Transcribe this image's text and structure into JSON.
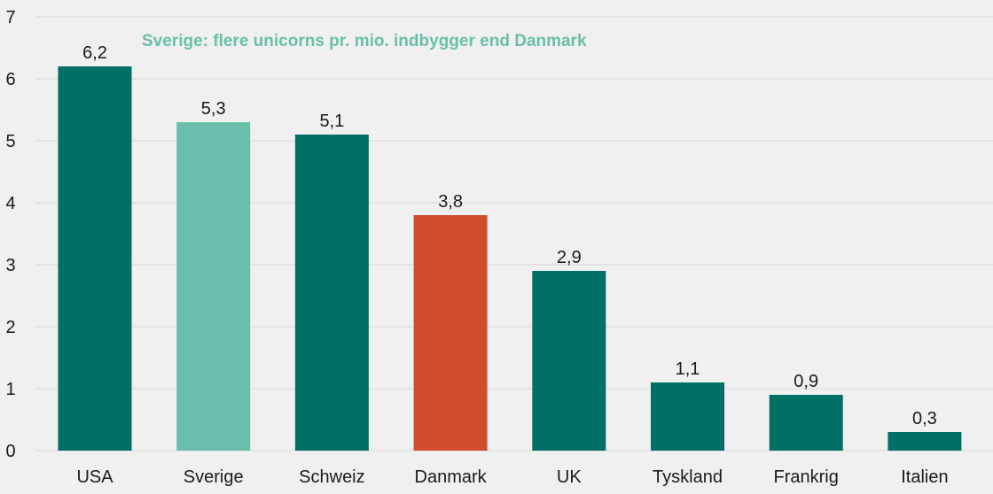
{
  "chart_data": {
    "type": "bar",
    "title": "",
    "annotation": "Sverige: flere unicorns pr. mio. indbygger end Danmark",
    "xlabel": "",
    "ylabel": "",
    "ylim": [
      0,
      7
    ],
    "yticks": [
      "0",
      "1",
      "2",
      "3",
      "4",
      "5",
      "6",
      "7"
    ],
    "grid": true,
    "legend": "none",
    "categories": [
      "USA",
      "Sverige",
      "Schweiz",
      "Danmark",
      "UK",
      "Tyskland",
      "Frankrig",
      "Italien"
    ],
    "values": [
      6.2,
      5.3,
      5.1,
      3.8,
      2.9,
      1.1,
      0.9,
      0.3
    ],
    "value_labels": [
      "6,2",
      "5,3",
      "5,1",
      "3,8",
      "2,9",
      "1,1",
      "0,9",
      "0,3"
    ],
    "bar_colors": [
      "#007067",
      "#6abfaa",
      "#007067",
      "#d14d2c",
      "#007067",
      "#007067",
      "#007067",
      "#007067"
    ]
  },
  "colors": {
    "background": "#f0f0f0",
    "grid": "#d9d9d9",
    "annotation": "#6abfaa",
    "text": "#1a1a1a"
  }
}
